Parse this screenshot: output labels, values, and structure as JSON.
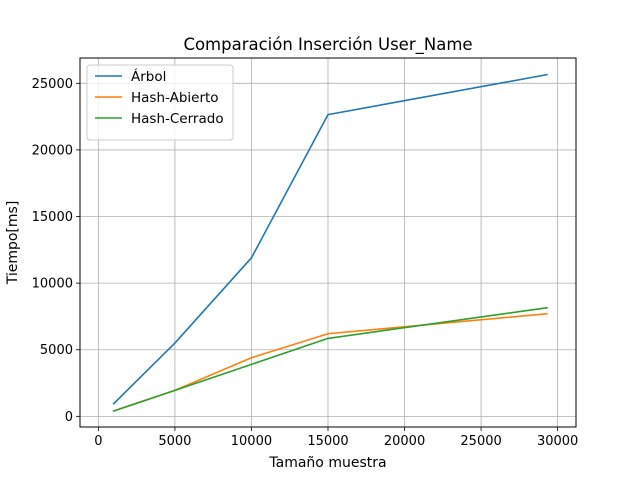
{
  "chart_data": {
    "type": "line",
    "title": "Comparación Inserción User_Name",
    "xlabel": "Tamaño muestra",
    "ylabel": "Tiempo[ms]",
    "xlim": [
      -1200,
      31200
    ],
    "ylim": [
      -800,
      26900
    ],
    "xticks": [
      0,
      5000,
      10000,
      15000,
      20000,
      25000,
      30000
    ],
    "yticks": [
      0,
      5000,
      10000,
      15000,
      20000,
      25000
    ],
    "grid": true,
    "legend_position": "top-left",
    "x": [
      1000,
      5000,
      10000,
      15000,
      29300
    ],
    "series": [
      {
        "name": "Árbol",
        "color": "#1f77b4",
        "values": [
          950,
          5500,
          11900,
          22650,
          25650
        ]
      },
      {
        "name": "Hash-Abierto",
        "color": "#ff7f0e",
        "values": [
          400,
          1950,
          4400,
          6200,
          7700
        ]
      },
      {
        "name": "Hash-Cerrado",
        "color": "#2ca02c",
        "values": [
          400,
          1950,
          3900,
          5850,
          8150
        ]
      }
    ]
  }
}
